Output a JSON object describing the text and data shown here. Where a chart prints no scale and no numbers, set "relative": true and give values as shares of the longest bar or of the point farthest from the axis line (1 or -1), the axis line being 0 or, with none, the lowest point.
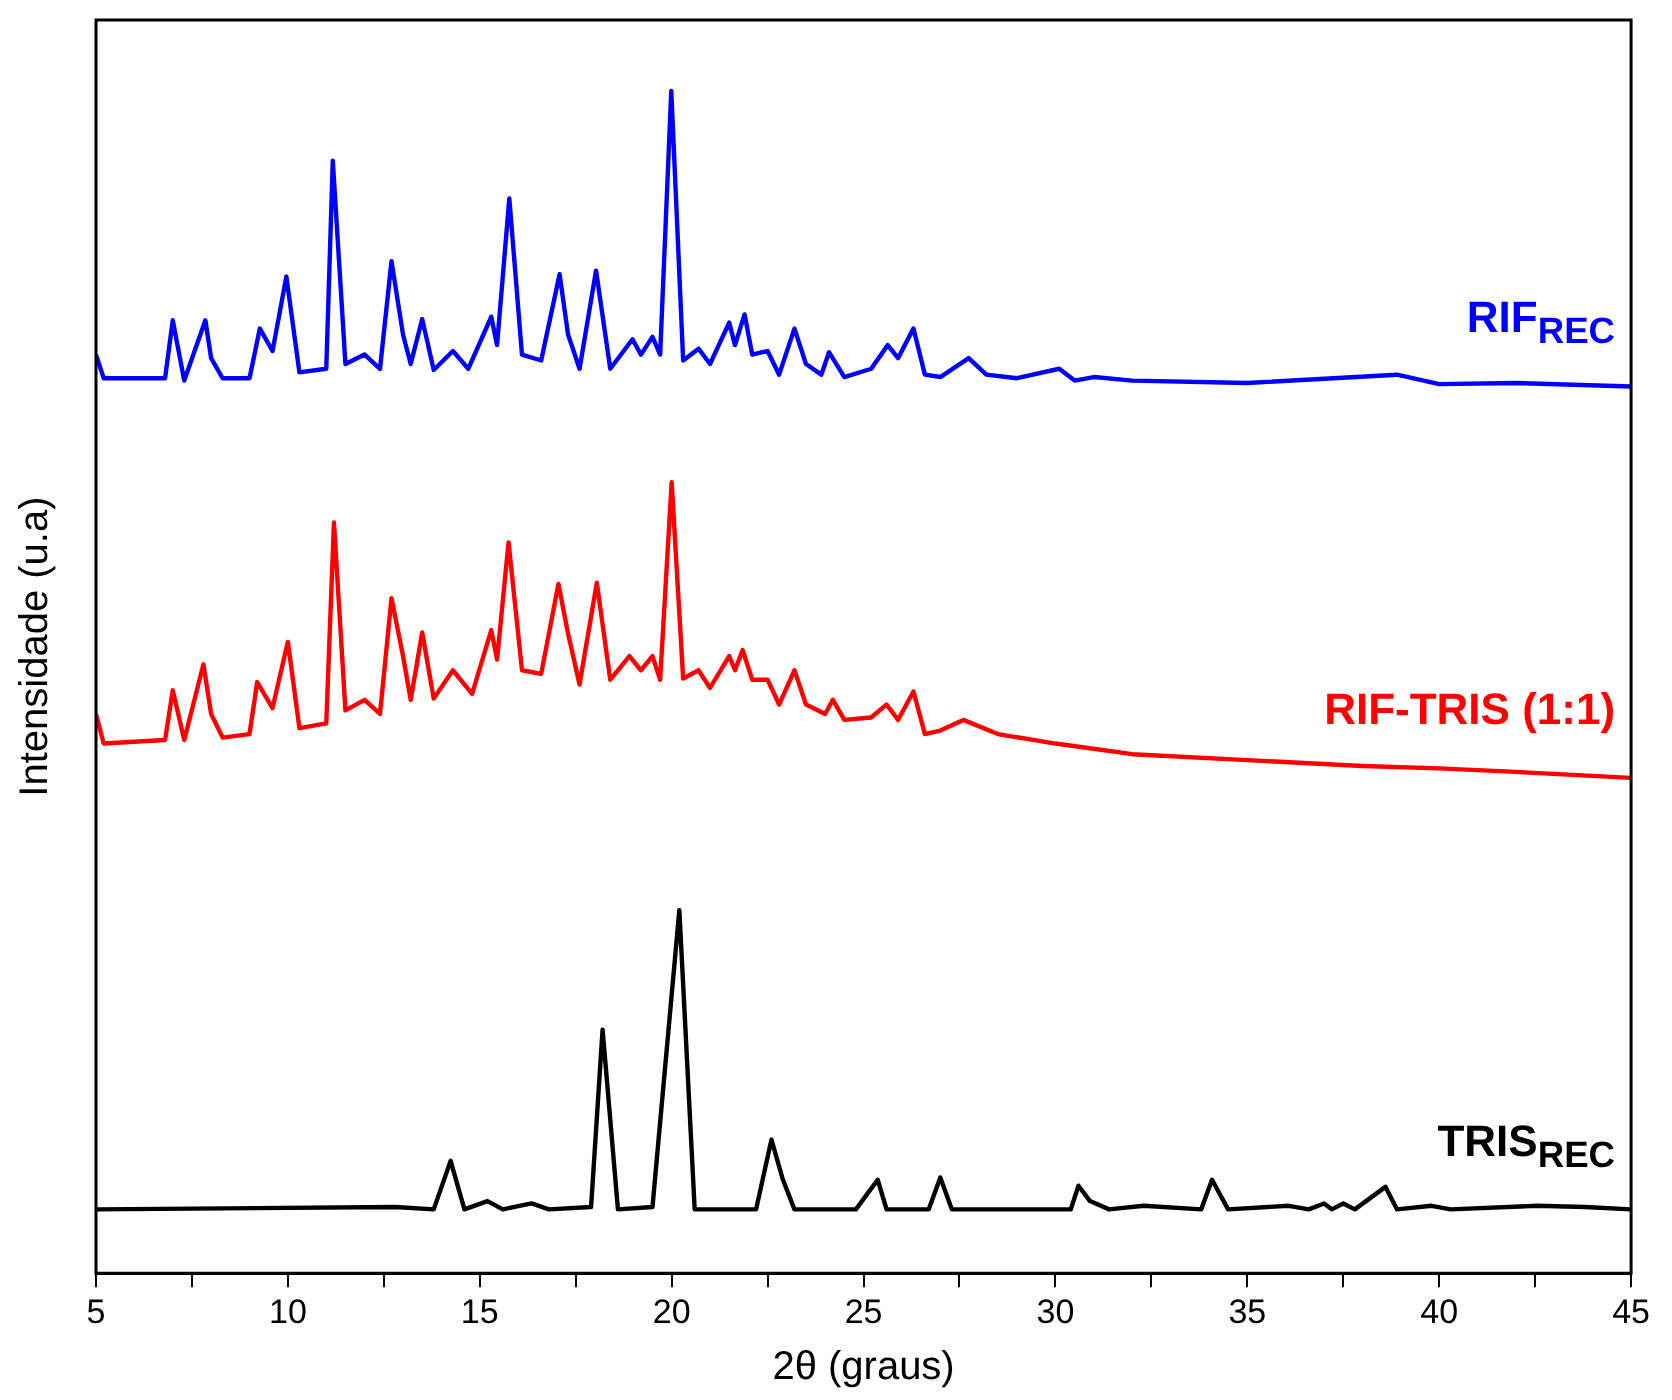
{
  "chart_data": {
    "type": "line",
    "relative": true,
    "xlabel": "2θ (graus)",
    "ylabel": "Intensidade (u.a)",
    "xlim": [
      5,
      45
    ],
    "xticks": [
      5,
      {
        "value": 7.5,
        "label": null
      },
      10,
      {
        "value": 12.5,
        "label": null
      },
      15,
      {
        "value": 17.5,
        "label": null
      },
      20,
      {
        "value": 22.5,
        "label": null
      },
      25,
      {
        "value": 27.5,
        "label": null
      },
      30,
      {
        "value": 32.5,
        "label": null
      },
      35,
      {
        "value": 37.5,
        "label": null
      },
      40,
      {
        "value": 42.5,
        "label": null
      },
      45
    ],
    "grid": false,
    "legend": false,
    "marker": "none",
    "line_style": "solid",
    "series": [
      {
        "name": "RIF$_{REC}$",
        "color": "#0000ff",
        "x": [
          5,
          5.2,
          6.8,
          7.0,
          7.3,
          7.85,
          8.0,
          8.3,
          9.0,
          9.27,
          9.6,
          9.96,
          10.3,
          11.0,
          11.17,
          11.5,
          12.0,
          12.4,
          12.7,
          13.0,
          13.2,
          13.5,
          13.8,
          14.3,
          14.7,
          15.3,
          15.45,
          15.77,
          16.1,
          16.6,
          17.08,
          17.3,
          17.6,
          18.03,
          18.4,
          18.98,
          19.2,
          19.5,
          19.7,
          19.99,
          20.3,
          20.7,
          21.0,
          21.5,
          21.65,
          21.9,
          22.1,
          22.5,
          22.8,
          23.2,
          23.5,
          23.9,
          24.1,
          24.5,
          25.2,
          25.63,
          25.9,
          26.3,
          26.6,
          27.0,
          27.74,
          28.2,
          29.0,
          30.1,
          30.5,
          31.0,
          32.0,
          35.0,
          38.9,
          40.0,
          42.0,
          45.0
        ],
        "values": [
          0.777,
          0.757,
          0.757,
          0.806,
          0.755,
          0.806,
          0.774,
          0.757,
          0.757,
          0.799,
          0.78,
          0.843,
          0.762,
          0.765,
          0.941,
          0.769,
          0.777,
          0.765,
          0.856,
          0.794,
          0.769,
          0.807,
          0.764,
          0.78,
          0.765,
          0.809,
          0.785,
          0.909,
          0.777,
          0.772,
          0.845,
          0.794,
          0.765,
          0.848,
          0.765,
          0.79,
          0.777,
          0.792,
          0.777,
          1.0,
          0.772,
          0.782,
          0.769,
          0.804,
          0.785,
          0.811,
          0.777,
          0.78,
          0.76,
          0.799,
          0.769,
          0.76,
          0.779,
          0.758,
          0.765,
          0.785,
          0.774,
          0.799,
          0.76,
          0.758,
          0.774,
          0.76,
          0.757,
          0.765,
          0.755,
          0.758,
          0.755,
          0.753,
          0.76,
          0.752,
          0.753,
          0.75
        ]
      },
      {
        "name": "RIF-TRIS (1:1)",
        "color": "#ff0000",
        "x": [
          5,
          5.2,
          6.8,
          7.0,
          7.3,
          7.8,
          8.0,
          8.3,
          9.0,
          9.2,
          9.6,
          10.0,
          10.3,
          11.0,
          11.2,
          11.5,
          12.0,
          12.4,
          12.7,
          13.0,
          13.2,
          13.5,
          13.8,
          14.3,
          14.8,
          15.3,
          15.45,
          15.75,
          16.1,
          16.6,
          17.05,
          17.3,
          17.6,
          18.05,
          18.4,
          18.9,
          19.2,
          19.5,
          19.7,
          20.0,
          20.3,
          20.7,
          21.0,
          21.5,
          21.65,
          21.85,
          22.1,
          22.5,
          22.8,
          23.2,
          23.5,
          24.0,
          24.2,
          24.5,
          25.2,
          25.6,
          25.9,
          26.3,
          26.6,
          27.0,
          27.6,
          28.5,
          30.0,
          32.0,
          35.0,
          38.0,
          40.0,
          42.0,
          45.0
        ],
        "values": [
          0.473,
          0.448,
          0.451,
          0.493,
          0.451,
          0.515,
          0.473,
          0.453,
          0.456,
          0.5,
          0.478,
          0.534,
          0.461,
          0.465,
          0.635,
          0.476,
          0.485,
          0.473,
          0.571,
          0.522,
          0.485,
          0.542,
          0.486,
          0.51,
          0.49,
          0.544,
          0.519,
          0.618,
          0.51,
          0.507,
          0.583,
          0.541,
          0.498,
          0.584,
          0.502,
          0.522,
          0.51,
          0.522,
          0.502,
          0.669,
          0.503,
          0.51,
          0.495,
          0.522,
          0.51,
          0.527,
          0.502,
          0.502,
          0.481,
          0.51,
          0.481,
          0.473,
          0.485,
          0.468,
          0.47,
          0.481,
          0.468,
          0.492,
          0.456,
          0.459,
          0.468,
          0.456,
          0.448,
          0.439,
          0.434,
          0.429,
          0.427,
          0.424,
          0.419
        ]
      },
      {
        "name": "TRIS$_{REC}$",
        "color": "#000000",
        "x": [
          5,
          12.8,
          13.8,
          14.24,
          14.6,
          15.2,
          15.6,
          16.35,
          16.8,
          17.9,
          18.2,
          18.6,
          19.5,
          20.2,
          20.6,
          22.2,
          22.6,
          22.9,
          23.2,
          24.8,
          25.37,
          25.6,
          26.7,
          27.0,
          27.3,
          30.4,
          30.6,
          30.9,
          31.4,
          32.3,
          33.8,
          34.08,
          34.5,
          36.08,
          36.6,
          37.0,
          37.2,
          37.5,
          37.8,
          38.6,
          38.9,
          39.8,
          40.3,
          42.55,
          43.8,
          45.0
        ],
        "values": [
          0.054,
          0.056,
          0.054,
          0.095,
          0.054,
          0.061,
          0.054,
          0.059,
          0.054,
          0.056,
          0.206,
          0.054,
          0.056,
          0.307,
          0.054,
          0.054,
          0.113,
          0.079,
          0.054,
          0.054,
          0.079,
          0.054,
          0.054,
          0.081,
          0.054,
          0.054,
          0.074,
          0.061,
          0.054,
          0.057,
          0.054,
          0.079,
          0.054,
          0.057,
          0.054,
          0.059,
          0.054,
          0.059,
          0.054,
          0.073,
          0.054,
          0.057,
          0.054,
          0.057,
          0.056,
          0.054
        ]
      }
    ]
  }
}
